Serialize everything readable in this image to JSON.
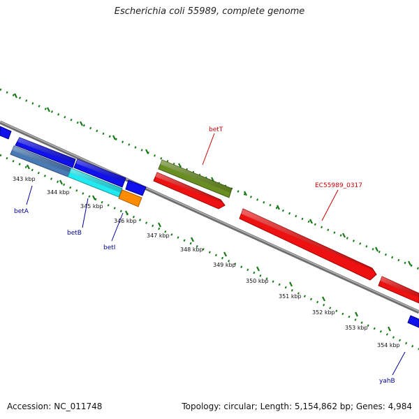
{
  "title": "Escherichia coli 55989, complete genome",
  "accession": "Accession: NC_011748",
  "summary": "Topology: circular; Length: 5,154,862 bp; Genes: 4,984",
  "colors": {
    "label_forward": "#cc0000",
    "label_reverse": "#000099",
    "backbone": "#8a8a8a",
    "dots": "#1a7a1a"
  },
  "ticks": [
    "343 kbp",
    "344 kbp",
    "345 kbp",
    "346 kbp",
    "347 kbp",
    "348 kbp",
    "349 kbp",
    "350 kbp",
    "351 kbp",
    "352 kbp",
    "353 kbp",
    "354 kbp"
  ],
  "gene_labels": [
    {
      "text": "betT"
    },
    {
      "text": "EC55989_0317"
    },
    {
      "text": "betA"
    },
    {
      "text": "betB"
    },
    {
      "text": "betI"
    },
    {
      "text": "yahB"
    }
  ]
}
